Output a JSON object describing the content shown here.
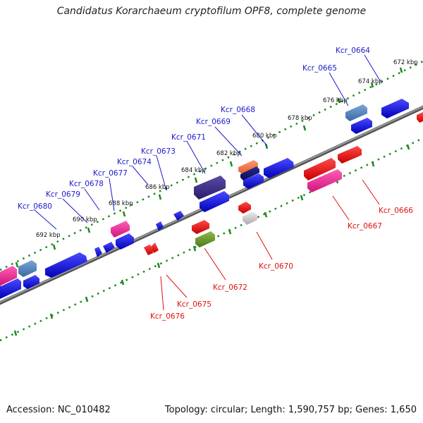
{
  "title": "Candidatus Korarchaeum cryptofilum OPF8, complete genome",
  "footer": {
    "accession": "Accession: NC_010482",
    "summary": "Topology: circular; Length: 1,590,757 bp; Genes: 1,650"
  },
  "colors": {
    "forward_label": "#1a1acc",
    "reverse_label": "#dd1111",
    "tick_dots": "#1a8a1a",
    "backbone": "#7f7f7f"
  },
  "ticks": [
    "672 kbp",
    "674 kbp",
    "676 kbp",
    "678 kbp",
    "680 kbp",
    "682 kbp",
    "684 kbp",
    "686 kbp",
    "688 kbp",
    "690 kbp",
    "692 kbp"
  ],
  "forward_genes": [
    "Kcr_0664",
    "Kcr_0665",
    "Kcr_0668",
    "Kcr_0669",
    "Kcr_0671",
    "Kcr_0673",
    "Kcr_0674",
    "Kcr_0677",
    "Kcr_0678",
    "Kcr_0679",
    "Kcr_0680"
  ],
  "reverse_genes": [
    "Kcr_0666",
    "Kcr_0667",
    "Kcr_0670",
    "Kcr_0672",
    "Kcr_0675",
    "Kcr_0676"
  ]
}
